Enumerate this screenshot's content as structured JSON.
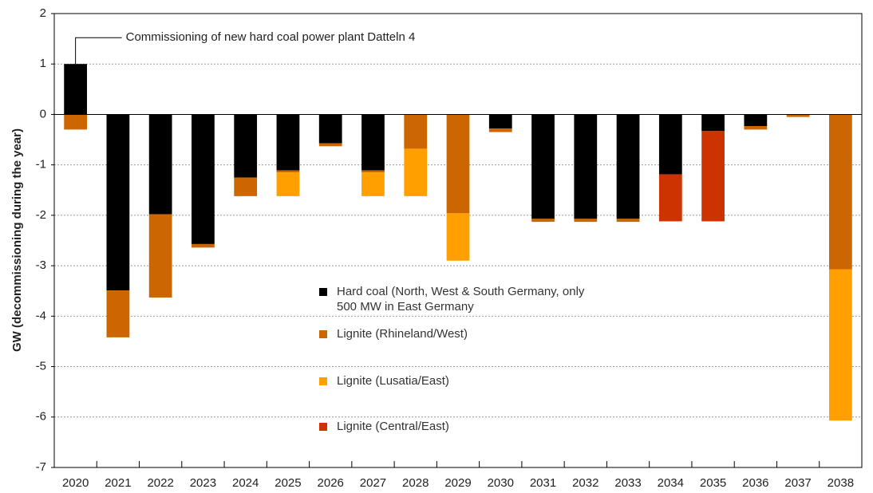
{
  "chart_data": {
    "type": "bar",
    "stacked": true,
    "y_label": "GW (decommissioning during the year)",
    "annotation": "Commissioning of new hard coal power plant Datteln 4",
    "categories": [
      "2020",
      "2021",
      "2022",
      "2023",
      "2024",
      "2025",
      "2026",
      "2027",
      "2028",
      "2029",
      "2030",
      "2031",
      "2032",
      "2033",
      "2034",
      "2035",
      "2036",
      "2037",
      "2038"
    ],
    "series": [
      {
        "name": "Hard coal (North, West & South Germany, only 500 MW in East Germany",
        "color": "#000000",
        "values": [
          1.0,
          -3.49,
          -1.98,
          -2.57,
          -1.25,
          -1.11,
          -0.57,
          -1.11,
          null,
          null,
          -0.28,
          -2.07,
          -2.07,
          -2.07,
          -1.19,
          -0.33,
          -0.23,
          null,
          null
        ]
      },
      {
        "name": "Lignite (Rhineland/West)",
        "color": "#cc6600",
        "values": [
          -0.3,
          -0.93,
          -1.65,
          -0.07,
          -0.37,
          -0.04,
          -0.06,
          -0.04,
          -0.68,
          -1.96,
          -0.07,
          -0.06,
          -0.06,
          -0.06,
          null,
          null,
          -0.07,
          -0.05,
          -3.07
        ]
      },
      {
        "name": "Lignite (Lusatia/East)",
        "color": "#ffa000",
        "values": [
          null,
          null,
          null,
          null,
          null,
          -0.47,
          null,
          -0.47,
          -0.94,
          -0.94,
          null,
          null,
          null,
          null,
          null,
          null,
          null,
          null,
          -3.0
        ]
      },
      {
        "name": "Lignite (Central/East)",
        "color": "#cc3300",
        "values": [
          null,
          null,
          null,
          null,
          null,
          null,
          null,
          null,
          null,
          null,
          null,
          null,
          null,
          null,
          -0.93,
          -1.79,
          null,
          null,
          null
        ]
      }
    ],
    "ylim": [
      -7,
      2
    ],
    "yticks": [
      -7,
      -6,
      -5,
      -4,
      -3,
      -2,
      -1,
      0,
      1,
      2
    ],
    "grid": true
  }
}
